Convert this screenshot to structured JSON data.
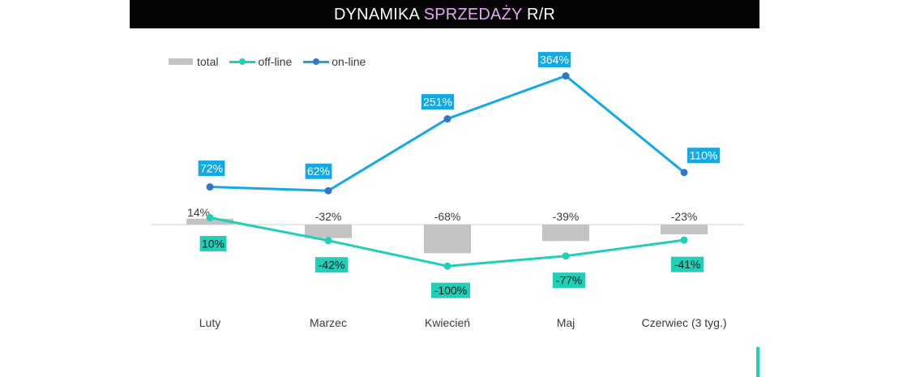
{
  "title": {
    "part1": "DYNAMIKA ",
    "part2": "SPRZEDAŻY",
    "part3": " R/R"
  },
  "colors": {
    "title_bg": "#050505",
    "title_accent": "#e7a6f2",
    "total": "#c3c3c3",
    "off_line": "#1fcfb8",
    "on_line": "#14a9e3",
    "on_line_marker": "#2f78c7",
    "baseline": "#d0d0d0",
    "corner_mark": "#1fcfb8"
  },
  "chart_data": {
    "type": "bar",
    "categories": [
      "Luty",
      "Marzec",
      "Kwiecień",
      "Maj",
      "Czerwiec (3 tyg.)"
    ],
    "series": [
      {
        "name": "total",
        "kind": "bar",
        "values": [
          14,
          -32,
          -68,
          -39,
          -23
        ],
        "labels": [
          "14%",
          "-32%",
          "-68%",
          "-39%",
          "-23%"
        ]
      },
      {
        "name": "off-line",
        "kind": "line",
        "values": [
          10,
          -42,
          -100,
          -77,
          -41
        ],
        "labels": [
          "10%",
          "-42%",
          "-100%",
          "-77%",
          "-41%"
        ]
      },
      {
        "name": "on-line",
        "kind": "line",
        "values": [
          72,
          62,
          251,
          364,
          110
        ],
        "labels": [
          "72%",
          "62%",
          "251%",
          "364%",
          "110%"
        ]
      }
    ],
    "legend": "top-left",
    "grid": false
  }
}
